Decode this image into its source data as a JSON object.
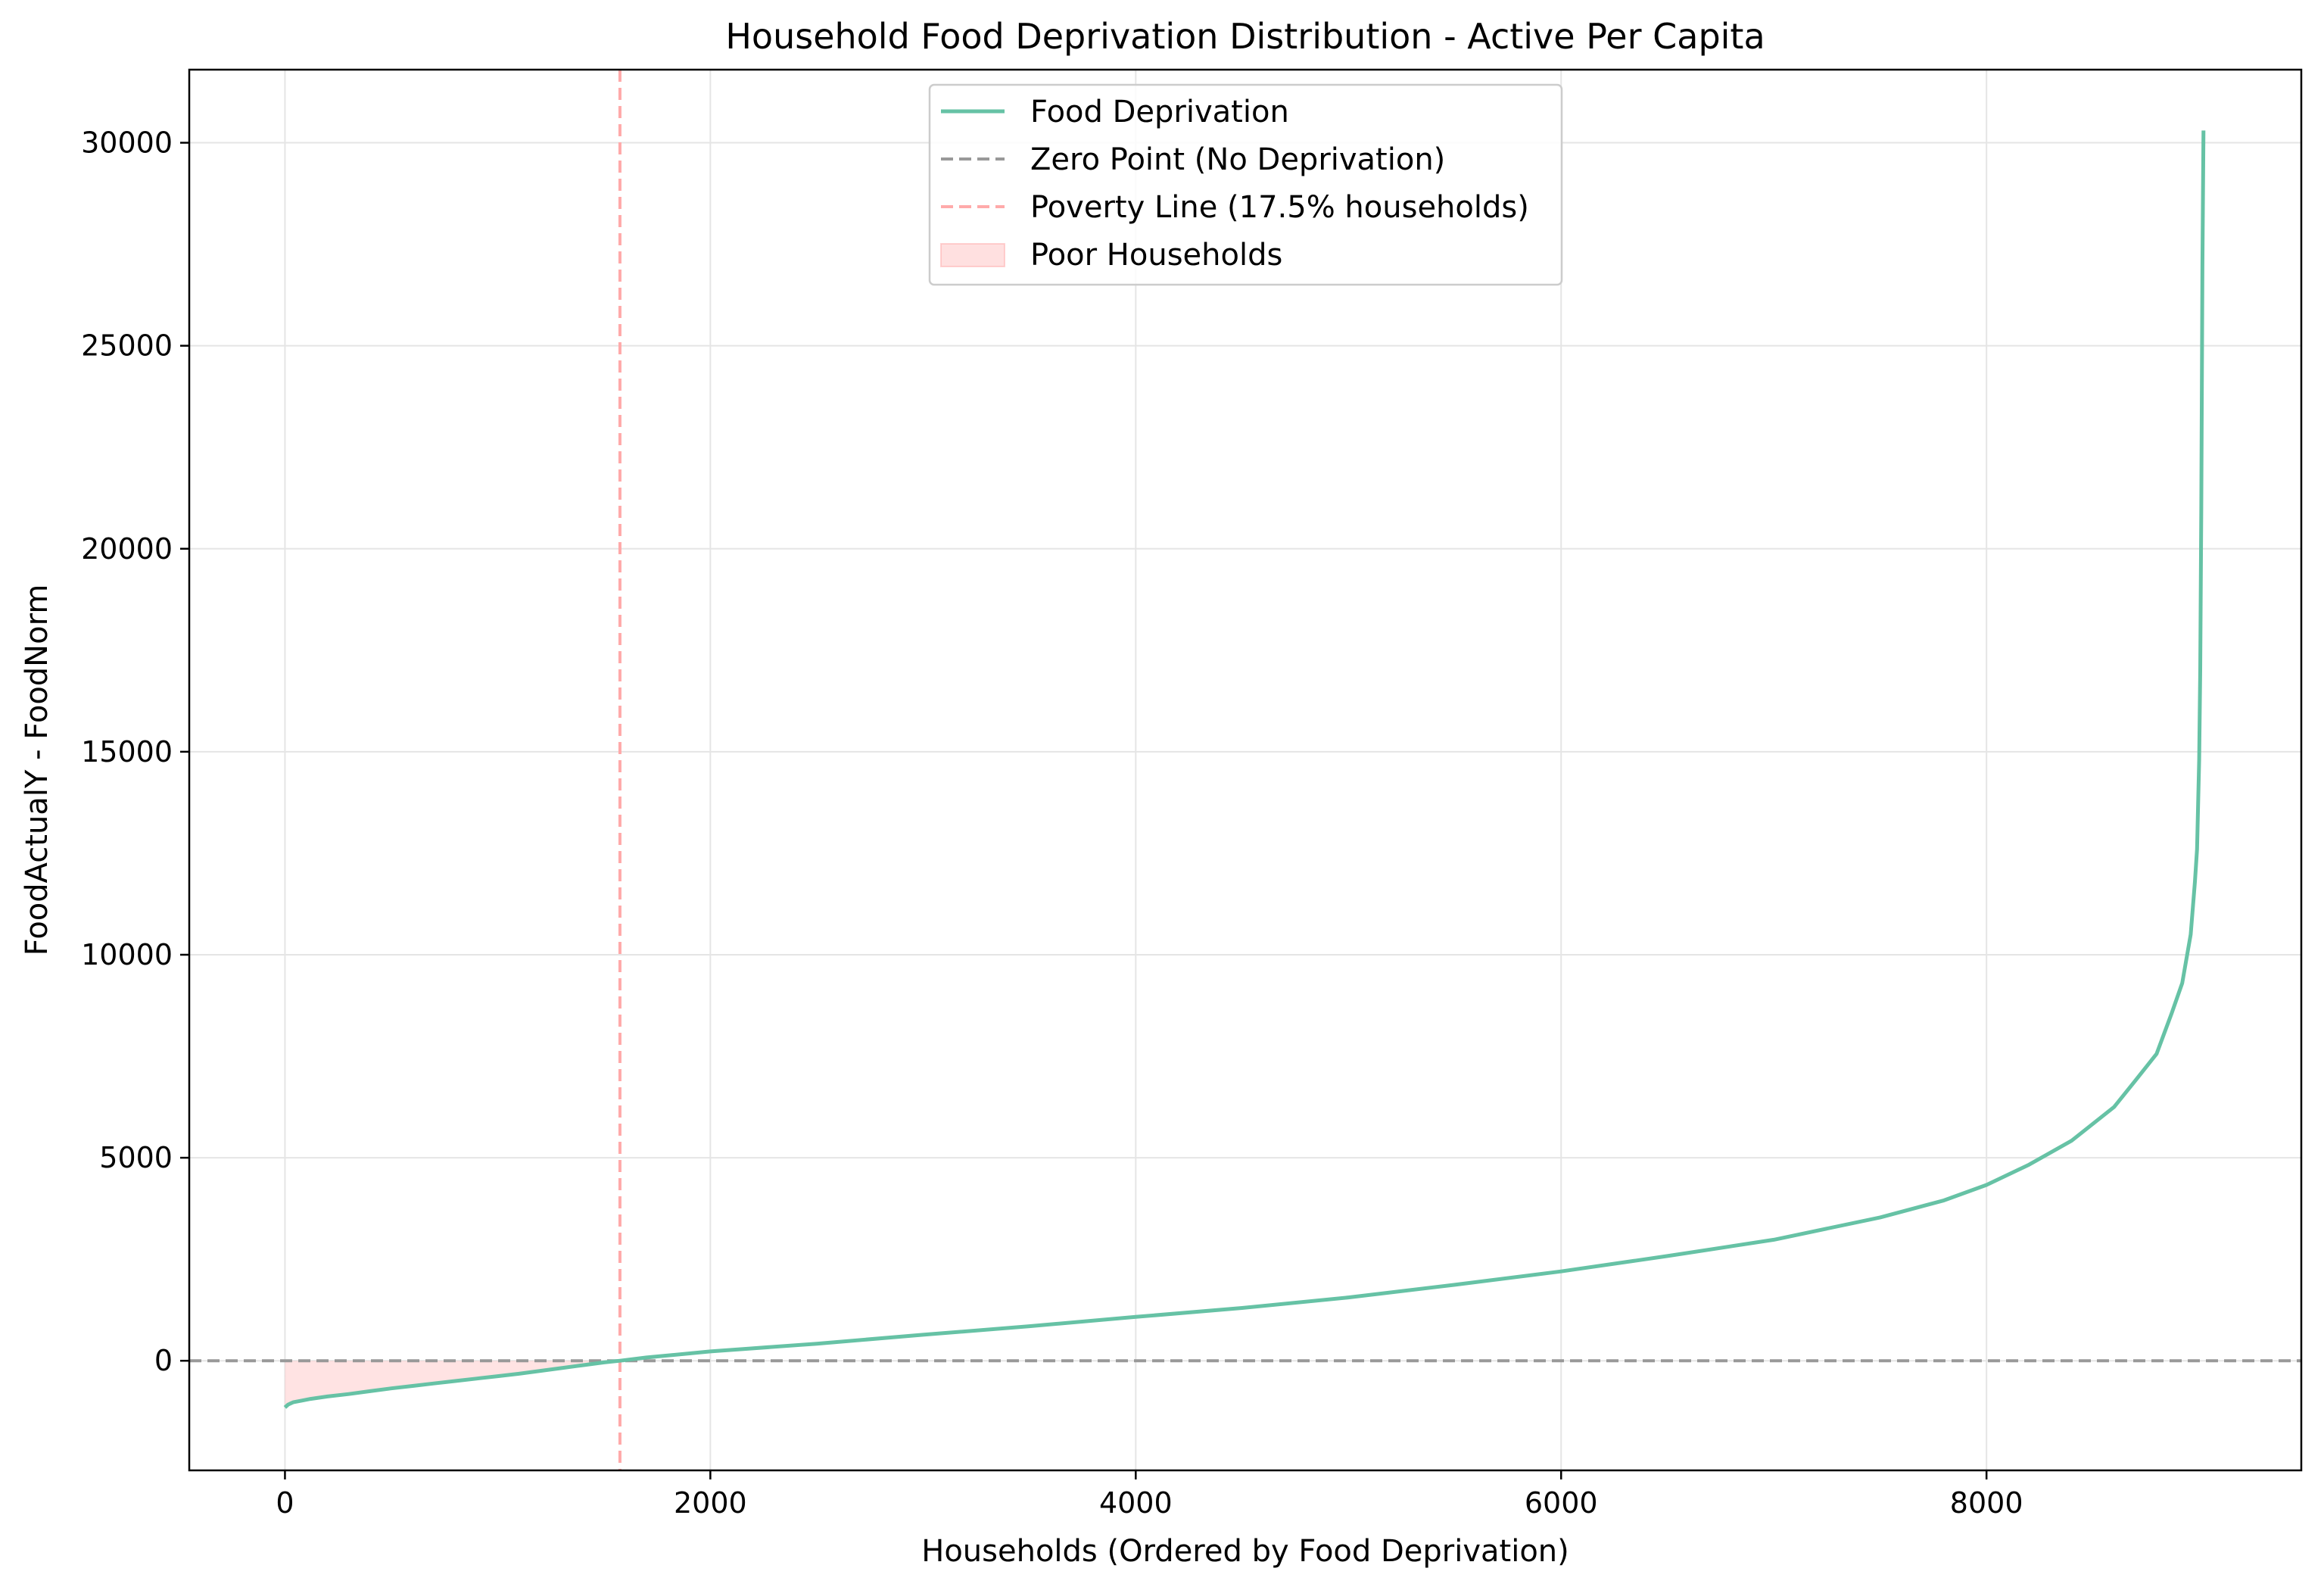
{
  "chart_data": {
    "type": "line",
    "title": "Household Food Deprivation Distribution - Active Per Capita",
    "xlabel": "Households (Ordered by Food Deprivation)",
    "ylabel": "FoodActualY - FoodNorm",
    "xlim": [
      -450,
      9480
    ],
    "ylim": [
      -2700,
      31800
    ],
    "x_ticks": [
      0,
      2000,
      4000,
      6000,
      8000
    ],
    "y_ticks": [
      0,
      5000,
      10000,
      15000,
      20000,
      25000,
      30000
    ],
    "grid": true,
    "legend_position": "upper center",
    "legend": [
      "Food Deprivation",
      "Zero Point (No Deprivation)",
      "Poverty Line (17.5% households)",
      "Poor Households"
    ],
    "zero_line": {
      "y": 0,
      "label": "Zero Point (No Deprivation)",
      "color": "#999999",
      "style": "dashed"
    },
    "poverty_line": {
      "x": 1575,
      "label": "Poverty Line (17.5% households)",
      "color": "#ffaaaa",
      "style": "dashed"
    },
    "poor_fill": {
      "x_from": 0,
      "x_to": 1575,
      "label": "Poor Households",
      "color": "#ffcccc"
    },
    "series": [
      {
        "name": "Food Deprivation",
        "color": "#66c2a5",
        "points": [
          [
            0,
            -1150
          ],
          [
            15,
            -1080
          ],
          [
            40,
            -1020
          ],
          [
            80,
            -980
          ],
          [
            120,
            -940
          ],
          [
            200,
            -880
          ],
          [
            300,
            -820
          ],
          [
            400,
            -750
          ],
          [
            500,
            -680
          ],
          [
            600,
            -620
          ],
          [
            700,
            -560
          ],
          [
            800,
            -500
          ],
          [
            900,
            -440
          ],
          [
            1000,
            -380
          ],
          [
            1100,
            -320
          ],
          [
            1200,
            -250
          ],
          [
            1300,
            -180
          ],
          [
            1400,
            -110
          ],
          [
            1500,
            -40
          ],
          [
            1575,
            0
          ],
          [
            1700,
            80
          ],
          [
            2000,
            230
          ],
          [
            2500,
            420
          ],
          [
            3000,
            640
          ],
          [
            3500,
            850
          ],
          [
            4000,
            1080
          ],
          [
            4500,
            1300
          ],
          [
            5000,
            1560
          ],
          [
            5500,
            1870
          ],
          [
            6000,
            2200
          ],
          [
            6500,
            2580
          ],
          [
            7000,
            2980
          ],
          [
            7500,
            3530
          ],
          [
            7800,
            3950
          ],
          [
            8000,
            4330
          ],
          [
            8200,
            4830
          ],
          [
            8400,
            5420
          ],
          [
            8600,
            6250
          ],
          [
            8700,
            6900
          ],
          [
            8800,
            7560
          ],
          [
            8870,
            8550
          ],
          [
            8920,
            9300
          ],
          [
            8960,
            10500
          ],
          [
            8980,
            11800
          ],
          [
            8990,
            12600
          ],
          [
            8995,
            13700
          ],
          [
            9000,
            14800
          ],
          [
            9005,
            17000
          ],
          [
            9010,
            21000
          ],
          [
            9015,
            27000
          ],
          [
            9020,
            30300
          ]
        ]
      }
    ]
  }
}
